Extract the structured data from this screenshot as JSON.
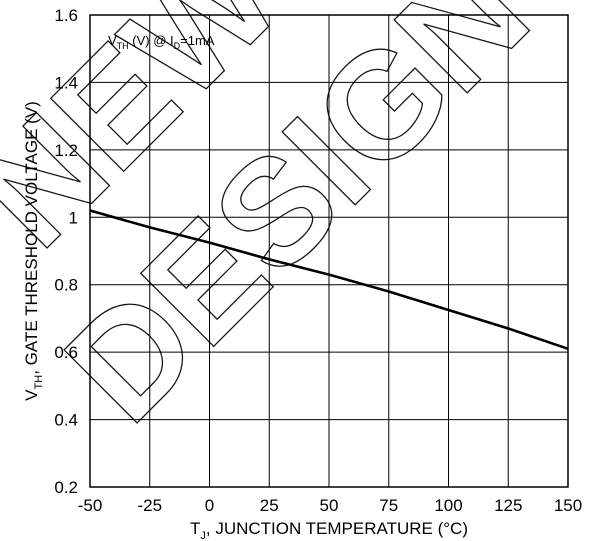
{
  "chart_data": {
    "type": "line",
    "title": "",
    "xlabel": {
      "base": "T",
      "sub": "J",
      "rest": ", JUNCTION TEMPERATURE (°C)"
    },
    "ylabel": {
      "base": "V",
      "sub": "TH",
      "rest": ", GATE THRESHOLD VOLTAGE (V)"
    },
    "xlim": [
      -50,
      150
    ],
    "ylim": [
      0.2,
      1.6
    ],
    "xticks": [
      -50,
      -25,
      0,
      25,
      50,
      75,
      100,
      125,
      150
    ],
    "yticks": [
      0.2,
      0.4,
      0.6,
      0.8,
      1,
      1.2,
      1.4,
      1.6
    ],
    "grid": true,
    "annotation": {
      "v": "V",
      "v_sub": "TH",
      "mid": " (V) @ I",
      "i_sub": "D",
      "tail": "=1mA"
    },
    "series": [
      {
        "x": [
          -50,
          -25,
          0,
          25,
          50,
          75,
          100,
          125,
          150
        ],
        "y": [
          1.02,
          0.97,
          0.925,
          0.875,
          0.83,
          0.78,
          0.725,
          0.67,
          0.61
        ]
      }
    ],
    "watermark": {
      "line1": "NEW",
      "line2": "DESIGN"
    }
  }
}
